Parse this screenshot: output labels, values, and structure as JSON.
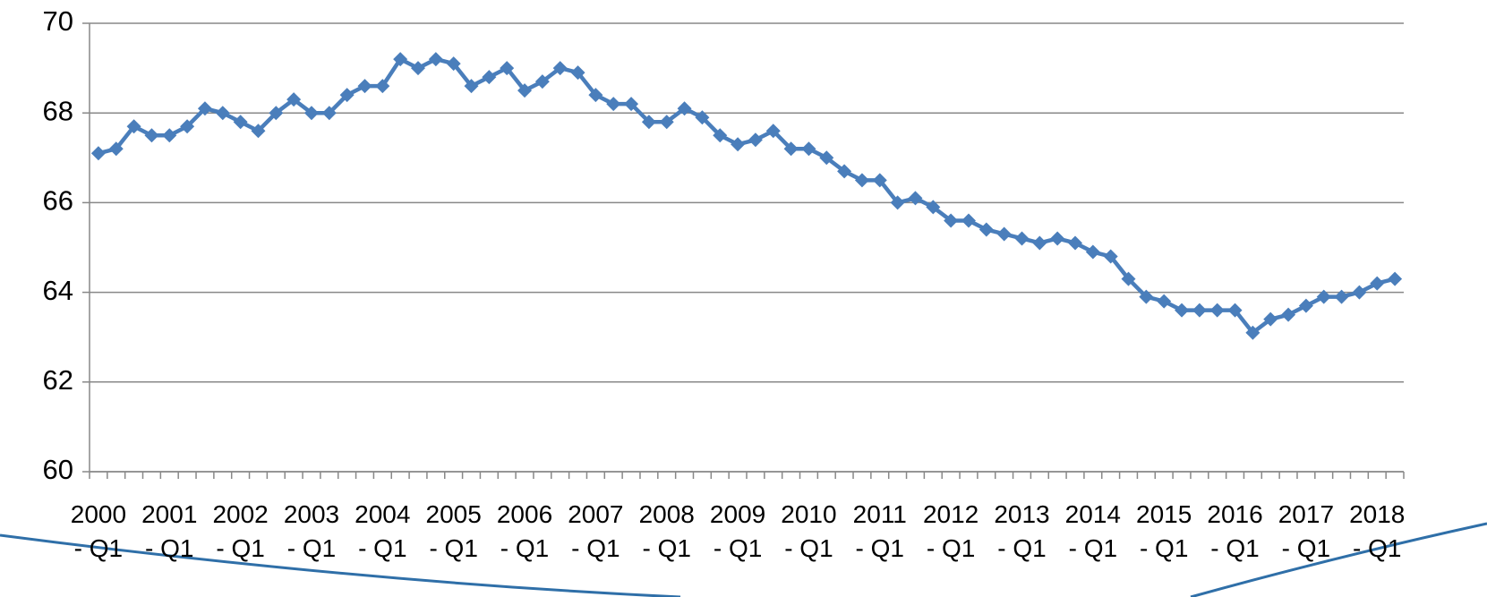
{
  "chart_data": {
    "type": "line",
    "categories": [
      "2000 - Q1",
      null,
      null,
      null,
      "2001 - Q1",
      null,
      null,
      null,
      "2002 - Q1",
      null,
      null,
      null,
      "2003 - Q1",
      null,
      null,
      null,
      "2004 - Q1",
      null,
      null,
      null,
      "2005 - Q1",
      null,
      null,
      null,
      "2006 - Q1",
      null,
      null,
      null,
      "2007 - Q1",
      null,
      null,
      null,
      "2008 - Q1",
      null,
      null,
      null,
      "2009 - Q1",
      null,
      null,
      null,
      "2010 - Q1",
      null,
      null,
      null,
      "2011 - Q1",
      null,
      null,
      null,
      "2012 - Q1",
      null,
      null,
      null,
      "2013 - Q1",
      null,
      null,
      null,
      "2014 - Q1",
      null,
      null,
      null,
      "2015 - Q1",
      null,
      null,
      null,
      "2016 - Q1",
      null,
      null,
      null,
      "2017 - Q1",
      null,
      null,
      null,
      "2018 - Q1",
      null
    ],
    "series": [
      {
        "color": "#4a7ebb",
        "values": [
          67.1,
          67.2,
          67.7,
          67.5,
          67.5,
          67.7,
          68.1,
          68.0,
          67.8,
          67.6,
          68.0,
          68.3,
          68.0,
          68.0,
          68.4,
          68.6,
          68.6,
          69.2,
          69.0,
          69.2,
          69.1,
          68.6,
          68.8,
          69.0,
          68.5,
          68.7,
          69.0,
          68.9,
          68.4,
          68.2,
          68.2,
          67.8,
          67.8,
          68.1,
          67.9,
          67.5,
          67.3,
          67.4,
          67.6,
          67.2,
          67.2,
          67.0,
          66.7,
          66.5,
          66.5,
          66.0,
          66.1,
          65.9,
          65.6,
          65.6,
          65.4,
          65.3,
          65.2,
          65.1,
          65.2,
          65.1,
          64.9,
          64.8,
          64.3,
          63.9,
          63.8,
          63.6,
          63.6,
          63.6,
          63.6,
          63.1,
          63.4,
          63.5,
          63.7,
          63.9,
          63.9,
          64.0,
          64.2,
          64.3
        ]
      }
    ],
    "ylim": [
      60,
      70
    ],
    "yticks": [
      60,
      62,
      64,
      66,
      68,
      70
    ],
    "grid": true
  }
}
